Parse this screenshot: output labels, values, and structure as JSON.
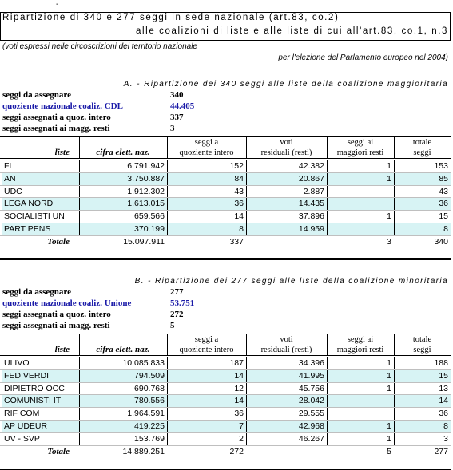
{
  "doc": {
    "top_mark": "-",
    "title_line1": "Ripartizione di 340 e 277 seggi in sede nazionale (art.83, co.2)",
    "title_line2": "alle coalizioni di liste e alle liste di cui all'art.83, co.1, n.3",
    "note_line1": "(voti espressi nelle circoscrizioni del territorio nazionale",
    "note_line2": "per l'elezione del Parlamento europeo nel 2004)"
  },
  "columns": {
    "liste": "liste",
    "cifra": "cifra elett. naz.",
    "seggi_quoz_1": "seggi a",
    "seggi_quoz_2": "quoziente intero",
    "voti_res_1": "voti",
    "voti_res_2": "residuali (resti)",
    "seggi_resti_1": "seggi ai",
    "seggi_resti_2": "maggiori resti",
    "totale_1": "totale",
    "totale_2": "seggi"
  },
  "section_a": {
    "title": "A. - Ripartizione dei 340 seggi alle liste della coalizione maggioritaria",
    "info": [
      {
        "label": "seggi da assegnare",
        "value": "340",
        "blue": false
      },
      {
        "label": "quoziente nazionale coaliz. CDL",
        "value": "44.405",
        "blue": true
      },
      {
        "label": "seggi assegnati a quoz. intero",
        "value": "337",
        "blue": false
      },
      {
        "label": "seggi assegnati ai magg. resti",
        "value": "3",
        "blue": false
      }
    ],
    "rows": [
      {
        "lista": "FI",
        "cifra": "6.791.942",
        "quoz": "152",
        "voti": "42.382",
        "resti": "1",
        "totale": "153"
      },
      {
        "lista": "AN",
        "cifra": "3.750.887",
        "quoz": "84",
        "voti": "20.867",
        "resti": "1",
        "totale": "85"
      },
      {
        "lista": "UDC",
        "cifra": "1.912.302",
        "quoz": "43",
        "voti": "2.887",
        "resti": "",
        "totale": "43"
      },
      {
        "lista": "LEGA NORD",
        "cifra": "1.613.015",
        "quoz": "36",
        "voti": "14.435",
        "resti": "",
        "totale": "36"
      },
      {
        "lista": "SOCIALISTI UN",
        "cifra": "659.566",
        "quoz": "14",
        "voti": "37.896",
        "resti": "1",
        "totale": "15"
      },
      {
        "lista": "PART PENS",
        "cifra": "370.199",
        "quoz": "8",
        "voti": "14.959",
        "resti": "",
        "totale": "8"
      }
    ],
    "total": {
      "label": "Totale",
      "cifra": "15.097.911",
      "quoz": "337",
      "voti": "",
      "resti": "3",
      "totale": "340"
    }
  },
  "section_b": {
    "title": "B. - Ripartizione dei 277 seggi alle liste della coalizione minoritaria",
    "info": [
      {
        "label": "seggi da assegnare",
        "value": "277",
        "blue": false
      },
      {
        "label": "quoziente nazionale coaliz. Unione",
        "value": "53.751",
        "blue": true
      },
      {
        "label": "seggi assegnati a quoz. intero",
        "value": "272",
        "blue": false
      },
      {
        "label": "seggi assegnati ai magg. resti",
        "value": "5",
        "blue": false
      }
    ],
    "rows": [
      {
        "lista": "ULIVO",
        "cifra": "10.085.833",
        "quoz": "187",
        "voti": "34.396",
        "resti": "1",
        "totale": "188"
      },
      {
        "lista": "FED VERDI",
        "cifra": "794.509",
        "quoz": "14",
        "voti": "41.995",
        "resti": "1",
        "totale": "15"
      },
      {
        "lista": "DIPIETRO OCC",
        "cifra": "690.768",
        "quoz": "12",
        "voti": "45.756",
        "resti": "1",
        "totale": "13"
      },
      {
        "lista": "COMUNISTI IT",
        "cifra": "780.556",
        "quoz": "14",
        "voti": "28.042",
        "resti": "",
        "totale": "14"
      },
      {
        "lista": "RIF COM",
        "cifra": "1.964.591",
        "quoz": "36",
        "voti": "29.555",
        "resti": "",
        "totale": "36"
      },
      {
        "lista": "AP UDEUR",
        "cifra": "419.225",
        "quoz": "7",
        "voti": "42.968",
        "resti": "1",
        "totale": "8"
      },
      {
        "lista": "UV - SVP",
        "cifra": "153.769",
        "quoz": "2",
        "voti": "46.267",
        "resti": "1",
        "totale": "3"
      }
    ],
    "total": {
      "label": "Totale",
      "cifra": "14.889.251",
      "quoz": "272",
      "voti": "",
      "resti": "5",
      "totale": "277"
    }
  },
  "colors": {
    "band": "#d7f3f4",
    "blue_text": "#1a1aa8"
  }
}
